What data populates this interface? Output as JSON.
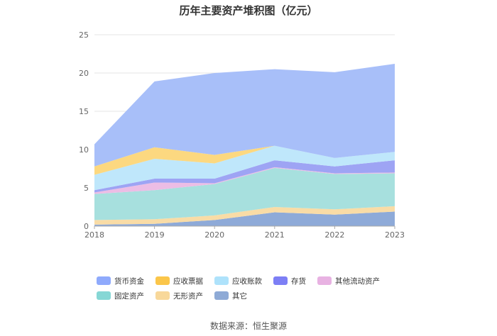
{
  "chart_data": {
    "type": "area",
    "stacked": true,
    "title": "历年主要资产堆积图（亿元）",
    "x": [
      "2018",
      "2019",
      "2020",
      "2021",
      "2022",
      "2023"
    ],
    "ylim": [
      0,
      25
    ],
    "yticks": [
      0,
      5,
      10,
      15,
      20,
      25
    ],
    "grid": true,
    "legend_position": "bottom",
    "series": [
      {
        "name": "其它",
        "color": "#8eaad8",
        "values": [
          0.2,
          0.3,
          0.8,
          1.8,
          1.5,
          1.9
        ]
      },
      {
        "name": "无形资产",
        "color": "#f9dca6",
        "values": [
          0.6,
          0.6,
          0.6,
          0.7,
          0.7,
          0.7
        ]
      },
      {
        "name": "固定资产",
        "color": "#a7e0de",
        "values": [
          3.4,
          3.8,
          4.1,
          5.1,
          4.6,
          4.3
        ]
      },
      {
        "name": "其他流动资产",
        "color": "#ecbde5",
        "values": [
          0.2,
          1.0,
          0.1,
          0.1,
          0.1,
          0.1
        ]
      },
      {
        "name": "存货",
        "color": "#9ea4f4",
        "values": [
          0.3,
          0.5,
          0.6,
          0.9,
          0.9,
          1.6
        ]
      },
      {
        "name": "应收账款",
        "color": "#bfe7fb",
        "values": [
          2.0,
          2.6,
          2.0,
          1.9,
          1.1,
          1.1
        ]
      },
      {
        "name": "应收票据",
        "color": "#fcd880",
        "values": [
          1.1,
          1.5,
          1.1,
          0.0,
          0.0,
          0.0
        ]
      },
      {
        "name": "货币资金",
        "color": "#a8bff9",
        "values": [
          2.9,
          8.6,
          10.7,
          10.0,
          11.2,
          11.5
        ]
      }
    ],
    "legend_order": [
      "货币资金",
      "应收票据",
      "应收账款",
      "存货",
      "其他流动资产",
      "固定资产",
      "无形资产",
      "其它"
    ],
    "legend_colors": {
      "货币资金": "#8faafc",
      "应收票据": "#fbc64a",
      "应收账款": "#aee2fb",
      "存货": "#7d7ff5",
      "其他流动资产": "#e8b2e2",
      "固定资产": "#86d7d5",
      "无形资产": "#f8d89a",
      "其它": "#8eaad6"
    }
  },
  "source": "数据来源：恒生聚源"
}
